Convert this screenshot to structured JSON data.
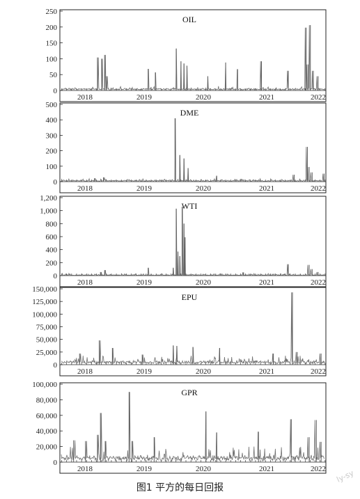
{
  "caption": "图1  平方的每日回报",
  "watermark": "ly-sy",
  "chart_data": [
    {
      "type": "line",
      "title": "OIL",
      "x_ticks": [
        "2018",
        "2019",
        "2020",
        "2021",
        "2022"
      ],
      "ylim": [
        0,
        250
      ],
      "y_ticks": [
        "0",
        "50",
        "100",
        "150",
        "200",
        "250"
      ],
      "grid": false,
      "baseline": 4,
      "noise": 9,
      "spikes": [
        [
          2018.35,
          104
        ],
        [
          2018.42,
          100
        ],
        [
          2018.47,
          112
        ],
        [
          2018.5,
          45
        ],
        [
          2019.2,
          68
        ],
        [
          2019.32,
          57
        ],
        [
          2019.67,
          132
        ],
        [
          2019.75,
          92
        ],
        [
          2019.8,
          85
        ],
        [
          2019.85,
          78
        ],
        [
          2020.2,
          45
        ],
        [
          2020.5,
          88
        ],
        [
          2020.7,
          67
        ],
        [
          2021.1,
          92
        ],
        [
          2021.55,
          62
        ],
        [
          2021.85,
          198
        ],
        [
          2021.88,
          82
        ],
        [
          2021.92,
          206
        ],
        [
          2021.97,
          62
        ],
        [
          2022.05,
          45
        ]
      ]
    },
    {
      "type": "line",
      "title": "DME",
      "x_ticks": [
        "2018",
        "2019",
        "2020",
        "2021",
        "2022"
      ],
      "ylim": [
        0,
        500
      ],
      "y_ticks": [
        "0",
        "100",
        "200",
        "300",
        "400",
        "500"
      ],
      "grid": false,
      "baseline": 5,
      "noise": 14,
      "spikes": [
        [
          2018.3,
          22
        ],
        [
          2018.45,
          28
        ],
        [
          2019.65,
          410
        ],
        [
          2019.73,
          172
        ],
        [
          2019.8,
          150
        ],
        [
          2019.87,
          88
        ],
        [
          2020.35,
          38
        ],
        [
          2021.65,
          45
        ],
        [
          2021.87,
          225
        ],
        [
          2021.9,
          95
        ],
        [
          2021.95,
          60
        ],
        [
          2022.15,
          52
        ]
      ]
    },
    {
      "type": "line",
      "title": "WTI",
      "x_ticks": [
        "2018",
        "2019",
        "2020",
        "2021",
        "2022"
      ],
      "ylim": [
        0,
        1200
      ],
      "y_ticks": [
        "0",
        "200",
        "400",
        "600",
        "800",
        "1,000",
        "1,200"
      ],
      "grid": false,
      "baseline": 8,
      "noise": 25,
      "spikes": [
        [
          2018.4,
          55
        ],
        [
          2018.47,
          85
        ],
        [
          2019.2,
          120
        ],
        [
          2019.62,
          120
        ],
        [
          2019.67,
          1030
        ],
        [
          2019.7,
          370
        ],
        [
          2019.73,
          300
        ],
        [
          2019.77,
          1060
        ],
        [
          2019.8,
          800
        ],
        [
          2019.82,
          590
        ],
        [
          2020.8,
          50
        ],
        [
          2021.55,
          175
        ],
        [
          2021.9,
          165
        ],
        [
          2021.95,
          100
        ],
        [
          2022.05,
          55
        ]
      ]
    },
    {
      "type": "line",
      "title": "EPU",
      "x_ticks": [
        "2018",
        "2019",
        "2020",
        "2021",
        "2022"
      ],
      "ylim": [
        0,
        150000
      ],
      "y_ticks": [
        "0",
        "25,000",
        "50,000",
        "75,000",
        "100,000",
        "125,000",
        "150,000"
      ],
      "grid": false,
      "baseline": 4000,
      "noise": 14000,
      "spikes": [
        [
          2018.05,
          22000
        ],
        [
          2018.38,
          48000
        ],
        [
          2018.6,
          33000
        ],
        [
          2019.1,
          20000
        ],
        [
          2019.62,
          38000
        ],
        [
          2019.68,
          37000
        ],
        [
          2019.95,
          35000
        ],
        [
          2020.4,
          33000
        ],
        [
          2021.3,
          22000
        ],
        [
          2021.62,
          143000
        ],
        [
          2021.7,
          25000
        ],
        [
          2022.1,
          22000
        ]
      ]
    },
    {
      "type": "line",
      "title": "GPR",
      "x_ticks": [
        "2018",
        "2019",
        "2020",
        "2021",
        "2022"
      ],
      "ylim": [
        0,
        100000
      ],
      "y_ticks": [
        "0",
        "20,000",
        "40,000",
        "60,000",
        "80,000",
        "100,000"
      ],
      "grid": false,
      "baseline": 4000,
      "noise": 18000,
      "spikes": [
        [
          2017.95,
          28000
        ],
        [
          2018.15,
          27000
        ],
        [
          2018.35,
          35000
        ],
        [
          2018.4,
          63000
        ],
        [
          2018.48,
          27000
        ],
        [
          2018.88,
          90000
        ],
        [
          2018.93,
          27000
        ],
        [
          2019.3,
          32000
        ],
        [
          2020.17,
          65000
        ],
        [
          2020.35,
          38000
        ],
        [
          2021.05,
          39000
        ],
        [
          2021.6,
          55000
        ],
        [
          2021.9,
          32000
        ],
        [
          2022.02,
          54000
        ],
        [
          2022.1,
          26000
        ]
      ]
    }
  ]
}
